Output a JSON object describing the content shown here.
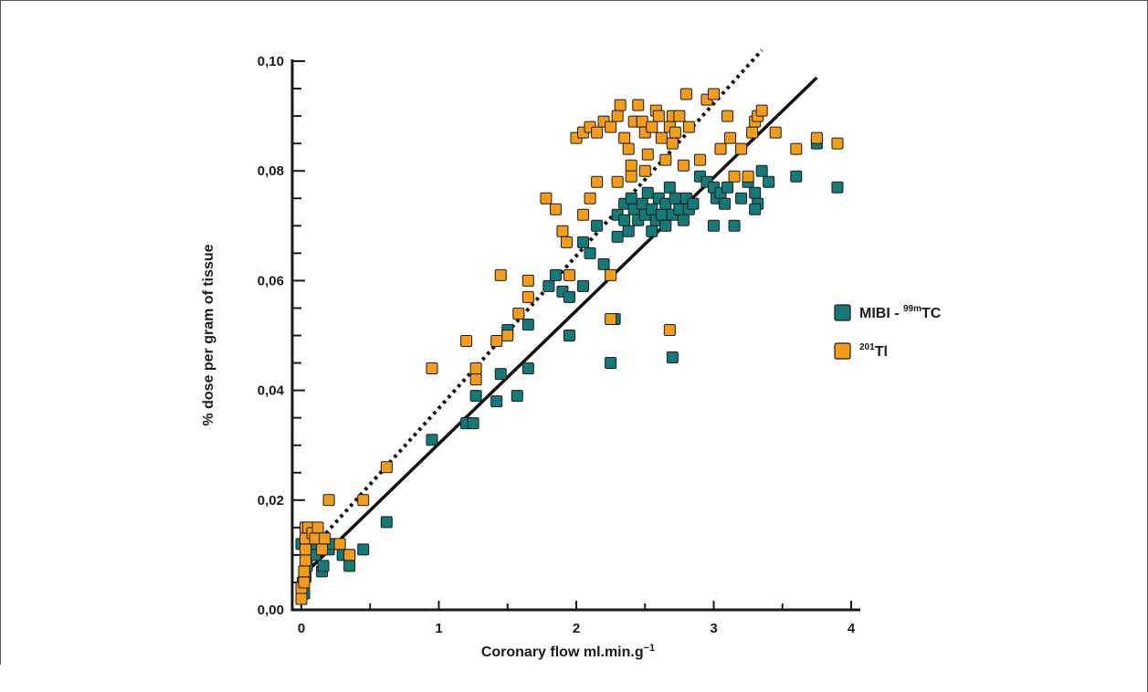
{
  "chart_data": {
    "type": "scatter",
    "xlabel": "Coronary flow ml.min.g",
    "xlabel_sup": "−1",
    "ylabel": "% dose per gram of tissue",
    "xlim": [
      0,
      4
    ],
    "ylim": [
      0,
      0.1
    ],
    "x_ticks": [
      0,
      1,
      2,
      3,
      4
    ],
    "x_tick_labels": [
      "0",
      "1",
      "2",
      "3",
      "4"
    ],
    "y_ticks": [
      0,
      0.02,
      0.04,
      0.06,
      0.08,
      0.1
    ],
    "y_tick_labels": [
      "0,00",
      "0,02",
      "0,04",
      "0,06",
      "0,08",
      "0,10"
    ],
    "legend_position": "right",
    "grid": false,
    "series": [
      {
        "name": "MIBI - 99mTC",
        "legend_label_main": "MIBI - ",
        "legend_label_sup": "99m",
        "legend_label_tail": "TC",
        "color": "#147a78",
        "points": [
          [
            0.0,
            0.002
          ],
          [
            0.02,
            0.003
          ],
          [
            0.01,
            0.005
          ],
          [
            0.03,
            0.006
          ],
          [
            0.04,
            0.008
          ],
          [
            0.0,
            0.012
          ],
          [
            0.03,
            0.012
          ],
          [
            0.05,
            0.013
          ],
          [
            0.06,
            0.012
          ],
          [
            0.08,
            0.011
          ],
          [
            0.1,
            0.01
          ],
          [
            0.15,
            0.007
          ],
          [
            0.16,
            0.008
          ],
          [
            0.2,
            0.011
          ],
          [
            0.22,
            0.012
          ],
          [
            0.3,
            0.01
          ],
          [
            0.35,
            0.01
          ],
          [
            0.35,
            0.008
          ],
          [
            0.45,
            0.011
          ],
          [
            0.62,
            0.016
          ],
          [
            0.95,
            0.031
          ],
          [
            1.2,
            0.034
          ],
          [
            1.25,
            0.034
          ],
          [
            1.27,
            0.039
          ],
          [
            1.42,
            0.038
          ],
          [
            1.45,
            0.043
          ],
          [
            1.5,
            0.051
          ],
          [
            1.57,
            0.039
          ],
          [
            1.65,
            0.044
          ],
          [
            1.65,
            0.052
          ],
          [
            1.8,
            0.059
          ],
          [
            1.85,
            0.061
          ],
          [
            1.9,
            0.058
          ],
          [
            1.95,
            0.057
          ],
          [
            1.95,
            0.05
          ],
          [
            2.05,
            0.059
          ],
          [
            2.05,
            0.067
          ],
          [
            2.1,
            0.065
          ],
          [
            2.15,
            0.07
          ],
          [
            2.2,
            0.063
          ],
          [
            2.25,
            0.045
          ],
          [
            2.28,
            0.053
          ],
          [
            2.3,
            0.068
          ],
          [
            2.3,
            0.072
          ],
          [
            2.35,
            0.074
          ],
          [
            2.35,
            0.071
          ],
          [
            2.38,
            0.069
          ],
          [
            2.4,
            0.075
          ],
          [
            2.42,
            0.073
          ],
          [
            2.45,
            0.071
          ],
          [
            2.48,
            0.074
          ],
          [
            2.5,
            0.072
          ],
          [
            2.52,
            0.076
          ],
          [
            2.55,
            0.069
          ],
          [
            2.55,
            0.073
          ],
          [
            2.58,
            0.071
          ],
          [
            2.6,
            0.075
          ],
          [
            2.62,
            0.072
          ],
          [
            2.65,
            0.074
          ],
          [
            2.65,
            0.07
          ],
          [
            2.68,
            0.077
          ],
          [
            2.7,
            0.072
          ],
          [
            2.7,
            0.046
          ],
          [
            2.72,
            0.075
          ],
          [
            2.75,
            0.073
          ],
          [
            2.78,
            0.071
          ],
          [
            2.8,
            0.075
          ],
          [
            2.82,
            0.073
          ],
          [
            2.85,
            0.074
          ],
          [
            2.9,
            0.079
          ],
          [
            2.95,
            0.078
          ],
          [
            3.0,
            0.077
          ],
          [
            3.02,
            0.075
          ],
          [
            3.05,
            0.076
          ],
          [
            3.08,
            0.074
          ],
          [
            3.1,
            0.077
          ],
          [
            3.15,
            0.07
          ],
          [
            3.0,
            0.07
          ],
          [
            3.2,
            0.075
          ],
          [
            3.25,
            0.078
          ],
          [
            3.3,
            0.076
          ],
          [
            3.32,
            0.074
          ],
          [
            3.35,
            0.08
          ],
          [
            3.4,
            0.078
          ],
          [
            3.6,
            0.079
          ],
          [
            3.75,
            0.085
          ],
          [
            3.9,
            0.077
          ],
          [
            3.3,
            0.073
          ]
        ]
      },
      {
        "name": "201Tl",
        "legend_label_main": "",
        "legend_label_sup": "201",
        "legend_label_tail": "Tl",
        "color": "#f29c1a",
        "points": [
          [
            0.0,
            0.002
          ],
          [
            0.0,
            0.004
          ],
          [
            0.02,
            0.005
          ],
          [
            0.02,
            0.007
          ],
          [
            0.03,
            0.009
          ],
          [
            0.03,
            0.011
          ],
          [
            0.03,
            0.013
          ],
          [
            0.03,
            0.015
          ],
          [
            0.05,
            0.015
          ],
          [
            0.08,
            0.014
          ],
          [
            0.1,
            0.013
          ],
          [
            0.12,
            0.015
          ],
          [
            0.15,
            0.011
          ],
          [
            0.17,
            0.013
          ],
          [
            0.2,
            0.02
          ],
          [
            0.28,
            0.012
          ],
          [
            0.35,
            0.01
          ],
          [
            0.45,
            0.02
          ],
          [
            0.62,
            0.026
          ],
          [
            0.95,
            0.044
          ],
          [
            1.2,
            0.049
          ],
          [
            1.27,
            0.042
          ],
          [
            1.27,
            0.044
          ],
          [
            1.42,
            0.049
          ],
          [
            1.45,
            0.061
          ],
          [
            1.5,
            0.05
          ],
          [
            1.58,
            0.054
          ],
          [
            1.65,
            0.057
          ],
          [
            1.65,
            0.06
          ],
          [
            1.78,
            0.075
          ],
          [
            1.85,
            0.073
          ],
          [
            1.9,
            0.069
          ],
          [
            1.93,
            0.067
          ],
          [
            1.95,
            0.061
          ],
          [
            2.0,
            0.086
          ],
          [
            2.05,
            0.072
          ],
          [
            2.1,
            0.075
          ],
          [
            2.15,
            0.078
          ],
          [
            2.25,
            0.061
          ],
          [
            2.25,
            0.053
          ],
          [
            2.3,
            0.078
          ],
          [
            2.05,
            0.087
          ],
          [
            2.1,
            0.088
          ],
          [
            2.15,
            0.087
          ],
          [
            2.2,
            0.089
          ],
          [
            2.25,
            0.088
          ],
          [
            2.3,
            0.09
          ],
          [
            2.32,
            0.092
          ],
          [
            2.35,
            0.086
          ],
          [
            2.38,
            0.084
          ],
          [
            2.4,
            0.081
          ],
          [
            2.42,
            0.089
          ],
          [
            2.45,
            0.092
          ],
          [
            2.48,
            0.089
          ],
          [
            2.5,
            0.087
          ],
          [
            2.5,
            0.08
          ],
          [
            2.52,
            0.083
          ],
          [
            2.55,
            0.088
          ],
          [
            2.58,
            0.091
          ],
          [
            2.6,
            0.09
          ],
          [
            2.62,
            0.086
          ],
          [
            2.65,
            0.082
          ],
          [
            2.68,
            0.088
          ],
          [
            2.7,
            0.085
          ],
          [
            2.7,
            0.09
          ],
          [
            2.72,
            0.087
          ],
          [
            2.75,
            0.09
          ],
          [
            2.78,
            0.081
          ],
          [
            2.8,
            0.094
          ],
          [
            2.82,
            0.088
          ],
          [
            2.9,
            0.082
          ],
          [
            2.95,
            0.093
          ],
          [
            3.0,
            0.094
          ],
          [
            3.05,
            0.084
          ],
          [
            3.1,
            0.09
          ],
          [
            3.12,
            0.086
          ],
          [
            3.15,
            0.079
          ],
          [
            3.2,
            0.084
          ],
          [
            3.25,
            0.079
          ],
          [
            3.28,
            0.087
          ],
          [
            3.3,
            0.089
          ],
          [
            3.32,
            0.09
          ],
          [
            3.35,
            0.091
          ],
          [
            3.45,
            0.087
          ],
          [
            3.6,
            0.084
          ],
          [
            3.75,
            0.086
          ],
          [
            3.9,
            0.085
          ],
          [
            2.68,
            0.051
          ],
          [
            2.4,
            0.079
          ]
        ]
      }
    ],
    "regression_lines": [
      {
        "style": "dotted",
        "from": [
          0.0,
          0.009
        ],
        "to": [
          3.35,
          0.102
        ]
      },
      {
        "style": "solid",
        "from": [
          0.0,
          0.006
        ],
        "to": [
          3.75,
          0.097
        ]
      }
    ]
  }
}
